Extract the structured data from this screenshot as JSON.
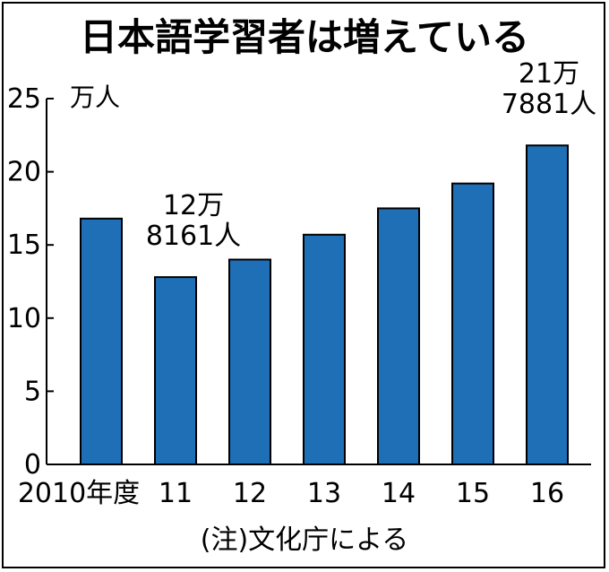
{
  "chart_data": {
    "type": "bar",
    "title": "日本語学習者は増えている",
    "ylabel": "万人",
    "ylim": [
      0,
      25
    ],
    "yticks": [
      0,
      5,
      10,
      15,
      20,
      25
    ],
    "categories": [
      "2010年度",
      "11",
      "12",
      "13",
      "14",
      "15",
      "16"
    ],
    "values": [
      16.8,
      12.8,
      14.0,
      15.7,
      17.5,
      19.2,
      21.8
    ],
    "annotations": [
      {
        "category": "11",
        "lines": [
          "12万",
          "8161人"
        ]
      },
      {
        "category": "16",
        "lines": [
          "21万",
          "7881人"
        ]
      }
    ],
    "note": "(注)文化庁による",
    "grid": false,
    "legend": "none",
    "colors": {
      "bar": "#1f6fb7",
      "axis": "#000000"
    }
  }
}
